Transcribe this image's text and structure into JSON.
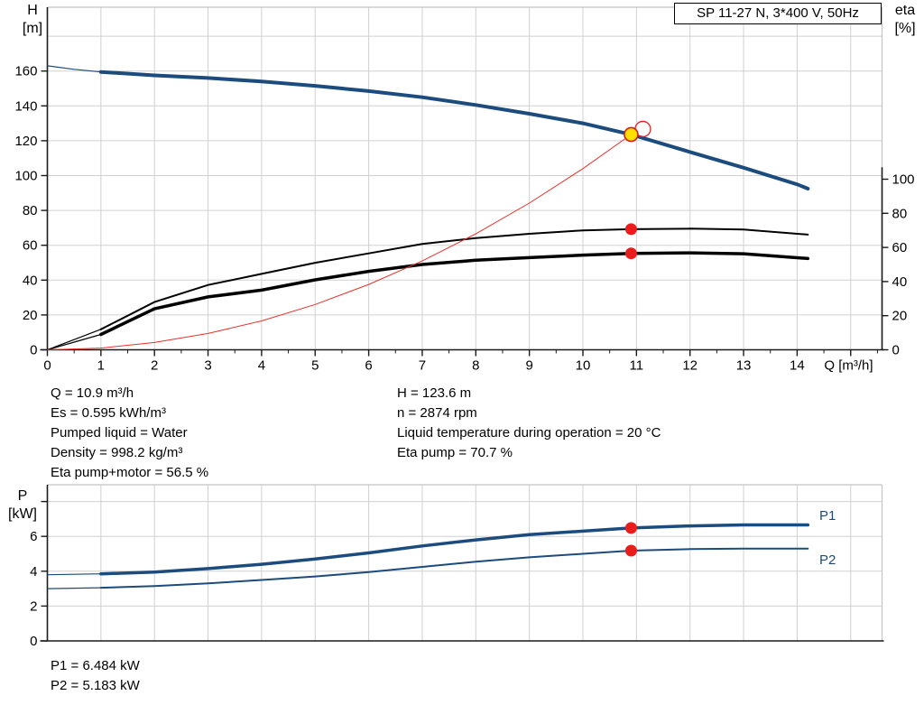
{
  "title_box": {
    "label": "SP 11-27 N, 3*400 V, 50Hz"
  },
  "colors": {
    "curve_blue": "#1c4b7d",
    "curve_black": "#000000",
    "curve_red": "#e8312a",
    "marker_red": "#ea1c1c",
    "duty_yellow": "#ffe000",
    "grid": "#d0d0d0",
    "frame": "#c4c4c4",
    "axis": "#1a1a1a"
  },
  "top_chart": {
    "y_axis": {
      "label_line1": "H",
      "label_line2": "[m]"
    },
    "y2_axis": {
      "label_line1": "eta",
      "label_line2": "[%]"
    },
    "x_axis": {
      "label": "Q [m³/h]"
    }
  },
  "bottom_chart": {
    "y_axis": {
      "label_line1": "P",
      "label_line2": "[kW]"
    },
    "p1_label": "P1",
    "p2_label": "P2"
  },
  "annotations": {
    "left": [
      "Q = 10.9 m³/h",
      "Es = 0.595 kWh/m³",
      "Pumped liquid = Water",
      "Density = 998.2 kg/m³",
      "Eta pump+motor = 56.5 %"
    ],
    "right": [
      "H = 123.6 m",
      "n = 2874 rpm",
      "Liquid temperature during operation = 20 °C",
      "Eta pump = 70.7 %"
    ],
    "power": [
      "P1 = 6.484 kW",
      "P2 = 5.183 kW"
    ]
  },
  "chart_data": [
    {
      "type": "line",
      "title": "SP 11-27 N, 3*400 V, 50Hz",
      "xlabel": "Q [m³/h]",
      "ylabel": "H [m]",
      "y2label": "eta [%]",
      "xlim": [
        0,
        15.6
      ],
      "ylim": [
        0,
        196
      ],
      "y2lim": [
        0,
        200
      ],
      "grid": true,
      "x_ticks": [
        0,
        1,
        2,
        3,
        4,
        5,
        6,
        7,
        8,
        9,
        10,
        11,
        12,
        13,
        14
      ],
      "y_ticks": [
        0,
        20,
        40,
        60,
        80,
        100,
        120,
        140,
        160
      ],
      "y2_ticks": [
        0,
        20,
        40,
        60,
        80,
        100
      ],
      "series": [
        {
          "name": "head-curve",
          "axis": "y",
          "color": "#1c4b7d",
          "width": 4,
          "thin_until": 1,
          "points": [
            [
              0,
              163
            ],
            [
              0.5,
              161
            ],
            [
              1,
              159.5
            ],
            [
              2,
              157.5
            ],
            [
              3,
              156
            ],
            [
              4,
              154
            ],
            [
              5,
              151.5
            ],
            [
              6,
              148.5
            ],
            [
              7,
              145
            ],
            [
              8,
              140.5
            ],
            [
              9,
              135.5
            ],
            [
              10,
              130
            ],
            [
              10.9,
              123.6
            ],
            [
              12,
              113.5
            ],
            [
              13,
              104.5
            ],
            [
              14,
              95
            ],
            [
              14.2,
              92.5
            ]
          ]
        },
        {
          "name": "eta-pump",
          "axis": "y2",
          "color": "#000000",
          "width": 2,
          "thin_until": 1,
          "points": [
            [
              0,
              0
            ],
            [
              0.5,
              6
            ],
            [
              1,
              12
            ],
            [
              2,
              28
            ],
            [
              3,
              38
            ],
            [
              4,
              44.5
            ],
            [
              5,
              51
            ],
            [
              6,
              56.5
            ],
            [
              7,
              62
            ],
            [
              8,
              65.5
            ],
            [
              9,
              68
            ],
            [
              10,
              70
            ],
            [
              10.9,
              70.7
            ],
            [
              12,
              71
            ],
            [
              13,
              70.5
            ],
            [
              14.2,
              67.5
            ]
          ]
        },
        {
          "name": "eta-pump-motor",
          "axis": "y2",
          "color": "#000000",
          "width": 3.5,
          "thin_until": 1,
          "points": [
            [
              0,
              0
            ],
            [
              0.5,
              4.5
            ],
            [
              1,
              9
            ],
            [
              2,
              24
            ],
            [
              3,
              31
            ],
            [
              4,
              35
            ],
            [
              5,
              41
            ],
            [
              6,
              46
            ],
            [
              7,
              50
            ],
            [
              8,
              52.5
            ],
            [
              9,
              54
            ],
            [
              10,
              55.5
            ],
            [
              10.9,
              56.5
            ],
            [
              12,
              56.8
            ],
            [
              13,
              56.3
            ],
            [
              14.2,
              53.5
            ]
          ]
        },
        {
          "name": "system-curve",
          "axis": "y",
          "color": "#e8312a",
          "width": 1,
          "thin_until": 0,
          "points": [
            [
              0,
              0
            ],
            [
              1,
              1
            ],
            [
              2,
              4.2
            ],
            [
              3,
              9.4
            ],
            [
              4,
              16.6
            ],
            [
              5,
              26
            ],
            [
              6,
              37.5
            ],
            [
              7,
              51
            ],
            [
              8,
              66.6
            ],
            [
              9,
              84.2
            ],
            [
              10,
              104
            ],
            [
              10.9,
              123.6
            ]
          ]
        }
      ],
      "duty_point": {
        "q": 10.9,
        "h": 123.6
      },
      "markers": [
        {
          "q": 10.9,
          "value": 70.7,
          "axis": "y2"
        },
        {
          "q": 10.9,
          "value": 56.5,
          "axis": "y2"
        }
      ]
    },
    {
      "type": "line",
      "ylabel": "P [kW]",
      "xlim": [
        0,
        15.6
      ],
      "ylim": [
        0,
        8.96
      ],
      "grid": true,
      "y_ticks": [
        0,
        2,
        4,
        6
      ],
      "y_ticks_unlabeled": [
        8
      ],
      "series": [
        {
          "name": "P1",
          "color": "#1c4b7d",
          "width": 3.5,
          "thin_until": 1,
          "points": [
            [
              0,
              3.8
            ],
            [
              1,
              3.85
            ],
            [
              2,
              3.95
            ],
            [
              3,
              4.15
            ],
            [
              4,
              4.4
            ],
            [
              5,
              4.7
            ],
            [
              6,
              5.05
            ],
            [
              7,
              5.45
            ],
            [
              8,
              5.8
            ],
            [
              9,
              6.1
            ],
            [
              10,
              6.3
            ],
            [
              10.9,
              6.484
            ],
            [
              12,
              6.6
            ],
            [
              13,
              6.66
            ],
            [
              14.2,
              6.66
            ]
          ]
        },
        {
          "name": "P2",
          "color": "#1c4b7d",
          "width": 2,
          "thin_until": 1,
          "points": [
            [
              0,
              3.0
            ],
            [
              1,
              3.05
            ],
            [
              2,
              3.15
            ],
            [
              3,
              3.3
            ],
            [
              4,
              3.5
            ],
            [
              5,
              3.7
            ],
            [
              6,
              3.95
            ],
            [
              7,
              4.25
            ],
            [
              8,
              4.55
            ],
            [
              9,
              4.8
            ],
            [
              10,
              5.0
            ],
            [
              10.9,
              5.183
            ],
            [
              12,
              5.27
            ],
            [
              13,
              5.3
            ],
            [
              14.2,
              5.3
            ]
          ]
        }
      ],
      "markers": [
        {
          "q": 10.9,
          "value": 6.484
        },
        {
          "q": 10.9,
          "value": 5.183
        }
      ]
    }
  ]
}
